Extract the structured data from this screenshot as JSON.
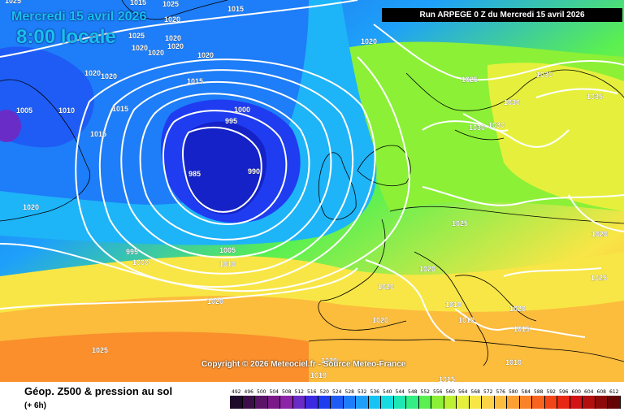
{
  "header": {
    "date": "Mercredi 15 avril 2026",
    "time": "8:00 locale",
    "run": "Run ARPEGE 0 Z du Mercredi 15 avril 2026"
  },
  "map": {
    "copyright": "Copyright © 2026 Meteociel.fr - Source Meteo-France",
    "isobar_labels": [
      {
        "text": "1015"
      },
      {
        "text": "1025"
      },
      {
        "text": "1015"
      },
      {
        "text": "1020"
      },
      {
        "text": "1025"
      },
      {
        "text": "1020"
      },
      {
        "text": "1020"
      },
      {
        "text": "1020"
      },
      {
        "text": "1020"
      },
      {
        "text": "1020"
      },
      {
        "text": "1020"
      },
      {
        "text": "1020"
      },
      {
        "text": "1015"
      },
      {
        "text": "1005"
      },
      {
        "text": "1010"
      },
      {
        "text": "1015"
      },
      {
        "text": "1015"
      },
      {
        "text": "1000"
      },
      {
        "text": "995"
      },
      {
        "text": "985"
      },
      {
        "text": "990"
      },
      {
        "text": "1020"
      },
      {
        "text": "995"
      },
      {
        "text": "1000"
      },
      {
        "text": "1005"
      },
      {
        "text": "1010"
      },
      {
        "text": "1020"
      },
      {
        "text": "1025"
      },
      {
        "text": "1025"
      },
      {
        "text": "1030"
      },
      {
        "text": "1030"
      },
      {
        "text": "1030"
      },
      {
        "text": "1030"
      },
      {
        "text": "1035"
      },
      {
        "text": "1025"
      },
      {
        "text": "1020"
      },
      {
        "text": "1025"
      },
      {
        "text": "1020"
      },
      {
        "text": "1020"
      },
      {
        "text": "1020"
      },
      {
        "text": "1010"
      },
      {
        "text": "1010"
      },
      {
        "text": "1020"
      },
      {
        "text": "1015"
      },
      {
        "text": "1020"
      },
      {
        "text": "1020"
      },
      {
        "text": "1019"
      },
      {
        "text": "1015"
      },
      {
        "text": "1010"
      },
      {
        "text": "1025"
      }
    ]
  },
  "legend": {
    "title": "Géop. Z500 & pression au sol",
    "subtitle": "(+ 6h)",
    "scale": [
      {
        "label": "492",
        "color": "#1e0a2a"
      },
      {
        "label": "496",
        "color": "#3c0f4a"
      },
      {
        "label": "500",
        "color": "#5a1468"
      },
      {
        "label": "504",
        "color": "#7a1a88"
      },
      {
        "label": "508",
        "color": "#8c23a8"
      },
      {
        "label": "512",
        "color": "#6a2cc6"
      },
      {
        "label": "516",
        "color": "#3c2ae0"
      },
      {
        "label": "520",
        "color": "#1f3cf0"
      },
      {
        "label": "524",
        "color": "#1e5cf5"
      },
      {
        "label": "528",
        "color": "#1e7df8"
      },
      {
        "label": "532",
        "color": "#1ea0fa"
      },
      {
        "label": "536",
        "color": "#16c3f5"
      },
      {
        "label": "540",
        "color": "#16dbe0"
      },
      {
        "label": "544",
        "color": "#1ee6b4"
      },
      {
        "label": "548",
        "color": "#32ee84"
      },
      {
        "label": "552",
        "color": "#5af050"
      },
      {
        "label": "556",
        "color": "#8cf037"
      },
      {
        "label": "560",
        "color": "#bcf032"
      },
      {
        "label": "564",
        "color": "#e6f03c"
      },
      {
        "label": "568",
        "color": "#f8e646"
      },
      {
        "label": "572",
        "color": "#fcd246"
      },
      {
        "label": "576",
        "color": "#fcbc3c"
      },
      {
        "label": "580",
        "color": "#fca032"
      },
      {
        "label": "584",
        "color": "#fa8228"
      },
      {
        "label": "588",
        "color": "#f8641e"
      },
      {
        "label": "592",
        "color": "#f24618"
      },
      {
        "label": "596",
        "color": "#e62814"
      },
      {
        "label": "600",
        "color": "#d21414"
      },
      {
        "label": "604",
        "color": "#b40f0f"
      },
      {
        "label": "608",
        "color": "#8c0a0a"
      },
      {
        "label": "612",
        "color": "#640505"
      }
    ]
  }
}
